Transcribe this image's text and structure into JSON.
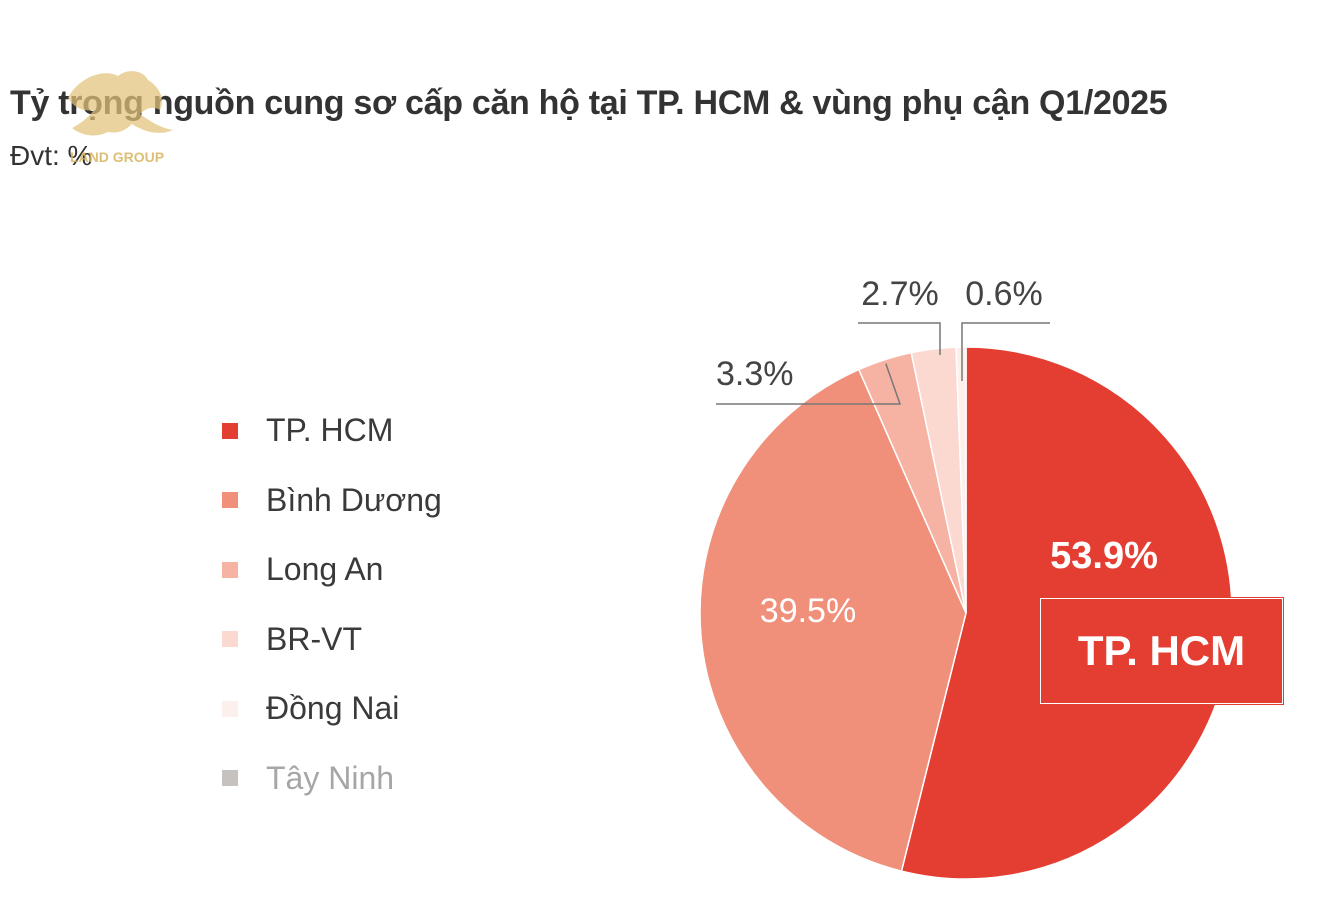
{
  "title": "Tỷ trọng nguồn cung sơ cấp căn hộ tại TP. HCM & vùng phụ cận Q1/2025",
  "subtitle": "Đvt: %",
  "logo_text": "LAND GROUP",
  "callout": "TP. HCM",
  "chart_data": {
    "type": "pie",
    "title": "Tỷ trọng nguồn cung sơ cấp căn hộ tại TP. HCM & vùng phụ cận Q1/2025",
    "unit": "%",
    "legend_position": "left",
    "slices": [
      {
        "name": "TP. HCM",
        "value": 53.9,
        "label": "53.9%",
        "color": "#e43e33"
      },
      {
        "name": "Bình Dương",
        "value": 39.5,
        "label": "39.5%",
        "color": "#f0907b"
      },
      {
        "name": "Long An",
        "value": 3.3,
        "label": "3.3%",
        "color": "#f6b3a4"
      },
      {
        "name": "BR-VT",
        "value": 2.7,
        "label": "2.7%",
        "color": "#fbd9d1"
      },
      {
        "name": "Đồng Nai",
        "value": 0.6,
        "label": "0.6%",
        "color": "#fdf0ec"
      },
      {
        "name": "Tây Ninh",
        "value": 0,
        "label": "",
        "color": "#c6c2bf"
      }
    ]
  }
}
